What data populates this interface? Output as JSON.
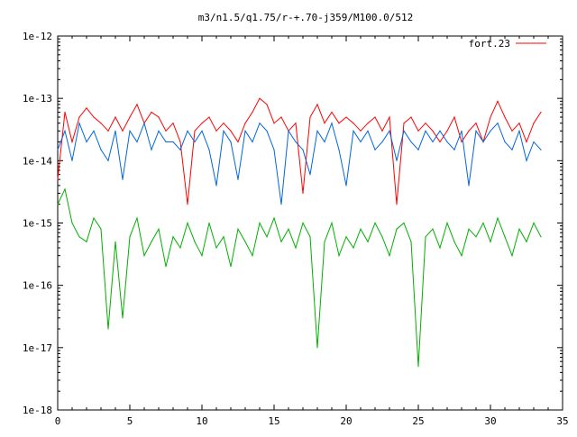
{
  "chart_data": {
    "type": "line",
    "title": "m3/n1.5/q1.75/r-+.70-j359/M100.0/512",
    "xlabel": "",
    "ylabel": "",
    "xlim": [
      0,
      35
    ],
    "ylim": [
      1e-18,
      1e-12
    ],
    "yscale": "log",
    "grid": false,
    "legend_position": "top-right",
    "x_tick_labels": [
      "0",
      "5",
      "10",
      "15",
      "20",
      "25",
      "30",
      "35"
    ],
    "y_tick_labels": [
      "1e-18",
      "1e-17",
      "1e-16",
      "1e-15",
      "1e-14",
      "1e-13",
      "1e-12"
    ],
    "x_ticks": [
      0,
      5,
      10,
      15,
      20,
      25,
      30,
      35
    ],
    "y_ticks": [
      1e-18,
      1e-17,
      1e-16,
      1e-15,
      1e-14,
      1e-13,
      1e-12
    ],
    "colors": {
      "red": "#ff0000",
      "green": "#00b000",
      "blue": "#0066dd"
    },
    "series": [
      {
        "name": "fort.23",
        "color": "#ff0000",
        "x": [
          0,
          0.5,
          1,
          1.5,
          2,
          2.5,
          3,
          3.5,
          4,
          4.5,
          5,
          5.5,
          6,
          6.5,
          7,
          7.5,
          8,
          8.5,
          9,
          9.5,
          10,
          10.5,
          11,
          11.5,
          12,
          12.5,
          13,
          13.5,
          14,
          14.5,
          15,
          15.5,
          16,
          16.5,
          17,
          17.5,
          18,
          18.5,
          19,
          19.5,
          20,
          20.5,
          21,
          21.5,
          22,
          22.5,
          23,
          23.5,
          24,
          24.5,
          25,
          25.5,
          26,
          26.5,
          27,
          27.5,
          28,
          28.5,
          29,
          29.5,
          30,
          30.5,
          31,
          31.5,
          32,
          32.5,
          33,
          33.5
        ],
        "y": [
          5e-15,
          6e-14,
          2e-14,
          5e-14,
          7e-14,
          5e-14,
          4e-14,
          3e-14,
          5e-14,
          3e-14,
          5e-14,
          8e-14,
          4e-14,
          6e-14,
          5e-14,
          3e-14,
          4e-14,
          2e-14,
          2e-15,
          3e-14,
          4e-14,
          5e-14,
          3e-14,
          4e-14,
          3e-14,
          2e-14,
          4e-14,
          6e-14,
          1e-13,
          8e-14,
          4e-14,
          5e-14,
          3e-14,
          4e-14,
          3e-15,
          5e-14,
          8e-14,
          4e-14,
          6e-14,
          4e-14,
          5e-14,
          4e-14,
          3e-14,
          4e-14,
          5e-14,
          3e-14,
          5e-14,
          2e-15,
          4e-14,
          5e-14,
          3e-14,
          4e-14,
          3e-14,
          2e-14,
          3e-14,
          5e-14,
          2e-14,
          3e-14,
          4e-14,
          2e-14,
          5e-14,
          9e-14,
          5e-14,
          3e-14,
          4e-14,
          2e-14,
          4e-14,
          6e-14
        ]
      },
      {
        "color": "#0066dd",
        "x": [
          0,
          0.5,
          1,
          1.5,
          2,
          2.5,
          3,
          3.5,
          4,
          4.5,
          5,
          5.5,
          6,
          6.5,
          7,
          7.5,
          8,
          8.5,
          9,
          9.5,
          10,
          10.5,
          11,
          11.5,
          12,
          12.5,
          13,
          13.5,
          14,
          14.5,
          15,
          15.5,
          16,
          16.5,
          17,
          17.5,
          18,
          18.5,
          19,
          19.5,
          20,
          20.5,
          21,
          21.5,
          22,
          22.5,
          23,
          23.5,
          24,
          24.5,
          25,
          25.5,
          26,
          26.5,
          27,
          27.5,
          28,
          28.5,
          29,
          29.5,
          30,
          30.5,
          31,
          31.5,
          32,
          32.5,
          33,
          33.5
        ],
        "y": [
          1.5e-14,
          3e-14,
          1e-14,
          4e-14,
          2e-14,
          3e-14,
          1.5e-14,
          1e-14,
          3e-14,
          5e-15,
          3e-14,
          2e-14,
          4e-14,
          1.5e-14,
          3e-14,
          2e-14,
          2e-14,
          1.5e-14,
          3e-14,
          2e-14,
          3e-14,
          1.5e-14,
          4e-15,
          3e-14,
          2e-14,
          5e-15,
          3e-14,
          2e-14,
          4e-14,
          3e-14,
          1.5e-14,
          2e-15,
          3e-14,
          2e-14,
          1.5e-14,
          6e-15,
          3e-14,
          2e-14,
          4e-14,
          1.5e-14,
          4e-15,
          3e-14,
          2e-14,
          3e-14,
          1.5e-14,
          2e-14,
          3e-14,
          1e-14,
          3e-14,
          2e-14,
          1.5e-14,
          3e-14,
          2e-14,
          3e-14,
          2e-14,
          1.5e-14,
          3e-14,
          4e-15,
          3e-14,
          2e-14,
          3e-14,
          4e-14,
          2e-14,
          1.5e-14,
          3e-14,
          1e-14,
          2e-14,
          1.5e-14
        ]
      },
      {
        "color": "#00b000",
        "x": [
          0,
          0.5,
          1,
          1.5,
          2,
          2.5,
          3,
          3.5,
          4,
          4.5,
          5,
          5.5,
          6,
          6.5,
          7,
          7.5,
          8,
          8.5,
          9,
          9.5,
          10,
          10.5,
          11,
          11.5,
          12,
          12.5,
          13,
          13.5,
          14,
          14.5,
          15,
          15.5,
          16,
          16.5,
          17,
          17.5,
          18,
          18.5,
          19,
          19.5,
          20,
          20.5,
          21,
          21.5,
          22,
          22.5,
          23,
          23.5,
          24,
          24.5,
          25,
          25.5,
          26,
          26.5,
          27,
          27.5,
          28,
          28.5,
          29,
          29.5,
          30,
          30.5,
          31,
          31.5,
          32,
          32.5,
          33,
          33.5
        ],
        "y": [
          2e-15,
          3.5e-15,
          1e-15,
          6e-16,
          5e-16,
          1.2e-15,
          8e-16,
          2e-17,
          5e-16,
          3e-17,
          6e-16,
          1.2e-15,
          3e-16,
          5e-16,
          8e-16,
          2e-16,
          6e-16,
          4e-16,
          1e-15,
          5e-16,
          3e-16,
          1e-15,
          4e-16,
          6e-16,
          2e-16,
          8e-16,
          5e-16,
          3e-16,
          1e-15,
          6e-16,
          1.2e-15,
          5e-16,
          8e-16,
          4e-16,
          1e-15,
          6e-16,
          1e-17,
          5e-16,
          1e-15,
          3e-16,
          6e-16,
          4e-16,
          8e-16,
          5e-16,
          1e-15,
          6e-16,
          3e-16,
          8e-16,
          1e-15,
          5e-16,
          5e-18,
          6e-16,
          8e-16,
          4e-16,
          1e-15,
          5e-16,
          3e-16,
          8e-16,
          6e-16,
          1e-15,
          5e-16,
          1.2e-15,
          6e-16,
          3e-16,
          8e-16,
          5e-16,
          1e-15,
          6e-16
        ]
      }
    ]
  }
}
